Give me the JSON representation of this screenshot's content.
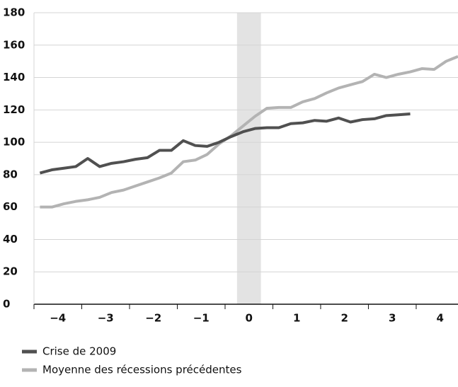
{
  "chart_data": {
    "type": "line",
    "x": [
      -4.375,
      -4.125,
      -3.875,
      -3.625,
      -3.375,
      -3.125,
      -2.875,
      -2.625,
      -2.375,
      -2.125,
      -1.875,
      -1.625,
      -1.375,
      -1.125,
      -0.875,
      -0.625,
      -0.375,
      -0.125,
      0.125,
      0.375,
      0.625,
      0.875,
      1.125,
      1.375,
      1.625,
      1.875,
      2.125,
      2.375,
      2.625,
      2.875,
      3.125,
      3.375,
      3.625,
      3.875,
      4.125,
      4.375
    ],
    "series": [
      {
        "name": "Crise de 2009",
        "color": "#505050",
        "values": [
          81,
          83,
          84,
          85,
          90,
          85,
          87,
          88,
          89.5,
          90.5,
          95,
          95,
          101,
          98,
          97.5,
          100,
          103.5,
          106.5,
          108.5,
          109,
          109,
          111.5,
          112,
          113.5,
          113,
          115,
          112.5,
          114,
          114.5,
          116.5,
          117,
          117.5,
          null,
          null,
          null,
          null
        ]
      },
      {
        "name": "Moyenne des récessions précédentes",
        "color": "#b3b3b3",
        "values": [
          60,
          60,
          62,
          63.5,
          64.5,
          66,
          69,
          70.5,
          73,
          75.5,
          78,
          81,
          88,
          89,
          92.5,
          99,
          104,
          110,
          116,
          121,
          121.5,
          121.5,
          125,
          127,
          130.5,
          133.5,
          135.5,
          137.5,
          142,
          140,
          142,
          143.5,
          145.5,
          145,
          150,
          153
        ]
      }
    ],
    "highlight": [
      -0.25,
      0.25
    ],
    "xlim": [
      -4.5,
      4.375
    ],
    "xticks": [
      {
        "value": -4,
        "label": "−4"
      },
      {
        "value": -3,
        "label": "−3"
      },
      {
        "value": -2,
        "label": "−2"
      },
      {
        "value": -1,
        "label": "−1"
      },
      0,
      1,
      2,
      3,
      4
    ],
    "ylim": [
      0,
      180
    ],
    "yticks": [
      0,
      20,
      40,
      60,
      80,
      100,
      120,
      140,
      160,
      180
    ],
    "grid": true
  }
}
